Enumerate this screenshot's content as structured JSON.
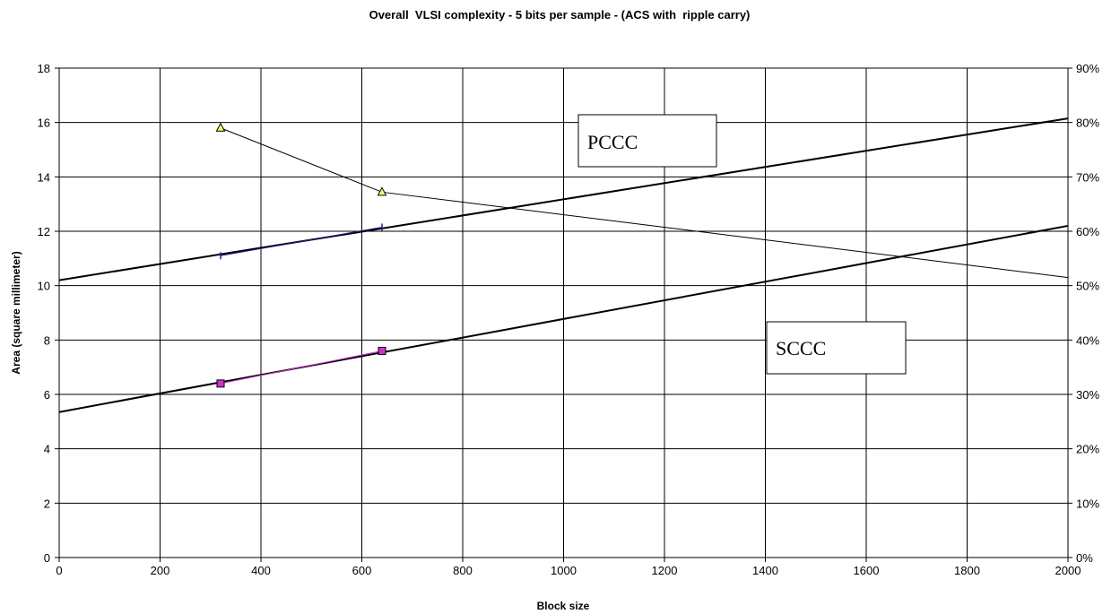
{
  "chart_data": {
    "type": "line",
    "title": "Overall  VLSI complexity - 5 bits per sample - (ACS with  ripple carry)",
    "xlabel": "Block size",
    "ylabel": "Area (square millimeter)",
    "xlim": [
      0,
      2000
    ],
    "ylim": [
      0,
      18
    ],
    "y2lim": [
      0,
      0.9
    ],
    "x_ticks": [
      "0",
      "200",
      "400",
      "600",
      "800",
      "1000",
      "1200",
      "1400",
      "1600",
      "1800",
      "2000"
    ],
    "y_ticks": [
      "0",
      "2",
      "4",
      "6",
      "8",
      "10",
      "12",
      "14",
      "16",
      "18"
    ],
    "y2_ticks": [
      "0%",
      "10%",
      "20%",
      "30%",
      "40%",
      "50%",
      "60%",
      "70%",
      "80%",
      "90%"
    ],
    "grid": true,
    "series": [
      {
        "axis": "left",
        "marker": "plus",
        "color": "#1f1f8f",
        "x": [
          320,
          640
        ],
        "y": [
          11.1,
          12.15
        ]
      },
      {
        "axis": "left",
        "marker": "square",
        "color": "#cc33cc",
        "x": [
          320,
          640
        ],
        "y": [
          6.4,
          7.6
        ]
      },
      {
        "axis": "right",
        "marker": "triangle",
        "color": "#ffff66",
        "x": [
          320,
          640,
          2000
        ],
        "y": [
          0.79,
          0.672,
          0.515
        ]
      }
    ],
    "trendlines": [
      {
        "label": "PCCC",
        "x": [
          0,
          2000
        ],
        "y": [
          10.2,
          16.15
        ]
      },
      {
        "label": "SCCC",
        "x": [
          0,
          2000
        ],
        "y": [
          5.35,
          12.2
        ]
      }
    ],
    "annotations": [
      {
        "text": "PCCC"
      },
      {
        "text": "SCCC"
      }
    ]
  }
}
